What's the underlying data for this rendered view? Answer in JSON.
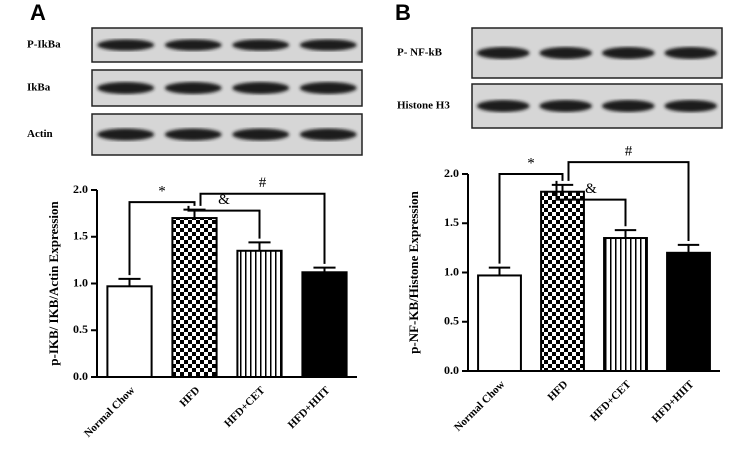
{
  "chart_data": [
    {
      "type": "bar",
      "panel_label": "A",
      "blot_labels": [
        "P-IkBa",
        "IkBa",
        "Actin"
      ],
      "y_label": "p-IKB/ IKB/Actin Expression",
      "categories": [
        "Normal Chow",
        "HFD",
        "HFD+CET",
        "HFD+HIIT"
      ],
      "values": [
        0.97,
        1.7,
        1.35,
        1.12
      ],
      "errors": [
        0.08,
        0.09,
        0.09,
        0.05
      ],
      "fills": [
        "white",
        "checker",
        "stripes",
        "black"
      ],
      "ylim": [
        0,
        2.0
      ],
      "yticks": [
        {
          "value": 0,
          "label": "0.0"
        },
        0.5,
        {
          "value": 1,
          "label": "1.0"
        },
        1.5,
        {
          "value": 2,
          "label": "2.0"
        }
      ],
      "annotations": [
        "*",
        "&",
        "#"
      ]
    },
    {
      "type": "bar",
      "panel_label": "B",
      "blot_labels": [
        "P- NF-kB",
        "Histone H3"
      ],
      "y_label": "p-NF-KB/Histone Expression",
      "categories": [
        "Normal Chow",
        "HFD",
        "HFD+CET",
        "HFD+HIIT"
      ],
      "values": [
        0.97,
        1.82,
        1.35,
        1.2
      ],
      "errors": [
        0.08,
        0.07,
        0.08,
        0.08
      ],
      "fills": [
        "white",
        "checker",
        "stripes",
        "black"
      ],
      "ylim": [
        0,
        2.0
      ],
      "yticks": [
        {
          "value": 0,
          "label": "0.0"
        },
        0.5,
        {
          "value": 1,
          "label": "1.0"
        },
        1.5,
        {
          "value": 2,
          "label": "2.0"
        }
      ],
      "annotations": [
        "*",
        "&",
        "#"
      ]
    }
  ]
}
